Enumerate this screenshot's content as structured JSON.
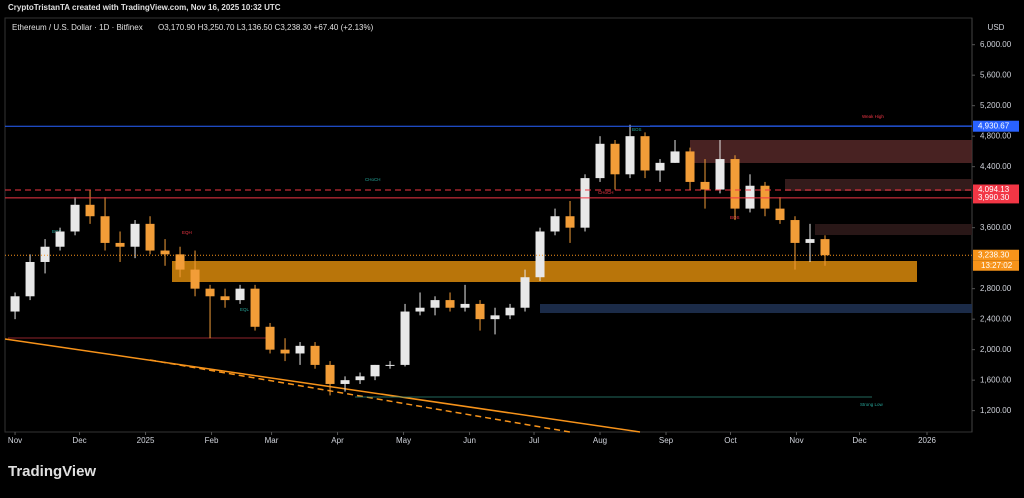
{
  "header": {
    "credit": "CryptoTristanTA created with TradingView.com, Nov 16, 2025 10:32 UTC",
    "brand": "TradingView"
  },
  "chart_data": {
    "type": "candlestick",
    "title": "Ethereum / U.S. Dollar · 1D · Bitfinex",
    "ohlc_text": "O3,170.90 H3,250.70 L3,136.50 C3,238.30 +67.40 (+2.13%)",
    "currency": "USD",
    "up_color": "#e8e8e8",
    "down_color": "#f29d38",
    "candles": {
      "open": [
        2500,
        2700,
        3150,
        3350,
        3550,
        3900,
        3750,
        3400,
        3350,
        3650,
        3300,
        3250,
        3050,
        2800,
        2700,
        2650,
        2800,
        2300,
        2000,
        1950,
        2050,
        1800,
        1550,
        1600,
        1650,
        1800,
        1800,
        2500,
        2550,
        2650,
        2550,
        2600,
        2400,
        2450,
        2550,
        2950,
        3550,
        3750,
        3600,
        4250,
        4700,
        4300,
        4800,
        4350,
        4450,
        4600,
        4200,
        4100,
        4500,
        3850,
        4150,
        3850,
        3700,
        3400,
        3450
      ],
      "high": [
        2750,
        3250,
        3450,
        3600,
        4000,
        4100,
        4000,
        3550,
        3700,
        3750,
        3450,
        3350,
        3300,
        2850,
        2800,
        2850,
        2850,
        2350,
        2150,
        2100,
        2100,
        1850,
        1650,
        1700,
        1800,
        1850,
        2600,
        2750,
        2700,
        2750,
        2850,
        2650,
        2550,
        2600,
        3050,
        3600,
        3850,
        3950,
        4300,
        4800,
        4750,
        4950,
        4850,
        4500,
        4750,
        4650,
        4500,
        4750,
        4550,
        4300,
        4200,
        4000,
        3750,
        3650,
        3500
      ],
      "low": [
        2400,
        2650,
        3000,
        3300,
        3500,
        3650,
        3300,
        3150,
        3200,
        3250,
        3100,
        2950,
        2700,
        2150,
        2550,
        2600,
        2250,
        1950,
        1850,
        1800,
        1750,
        1400,
        1450,
        1550,
        1600,
        1750,
        1780,
        2450,
        2450,
        2500,
        2500,
        2250,
        2200,
        2400,
        2500,
        2900,
        3500,
        3400,
        3550,
        4200,
        4100,
        4250,
        4250,
        4200,
        4450,
        4100,
        3850,
        4050,
        3700,
        3800,
        3750,
        3650,
        3050,
        3150,
        3100
      ],
      "close": [
        2700,
        3150,
        3350,
        3550,
        3900,
        3750,
        3400,
        3350,
        3650,
        3300,
        3250,
        3050,
        2800,
        2700,
        2650,
        2800,
        2300,
        2000,
        1950,
        2050,
        1800,
        1550,
        1600,
        1650,
        1800,
        1800,
        2500,
        2550,
        2650,
        2550,
        2600,
        2400,
        2450,
        2550,
        2950,
        3550,
        3750,
        3600,
        4250,
        4700,
        4300,
        4800,
        4350,
        4450,
        4600,
        4200,
        4100,
        4500,
        3850,
        4150,
        3850,
        3700,
        3400,
        3450,
        3238.3
      ]
    },
    "xlim": [
      -0.67,
      63.8
    ],
    "xticks": [
      {
        "value": 0,
        "label": "Nov"
      },
      {
        "value": 4.3,
        "label": "Dec"
      },
      {
        "value": 8.7,
        "label": "2025"
      },
      {
        "value": 13.1,
        "label": "Feb"
      },
      {
        "value": 17.1,
        "label": "Mar"
      },
      {
        "value": 21.5,
        "label": "Apr"
      },
      {
        "value": 25.9,
        "label": "May"
      },
      {
        "value": 30.3,
        "label": "Jun"
      },
      {
        "value": 34.6,
        "label": "Jul"
      },
      {
        "value": 39,
        "label": "Aug"
      },
      {
        "value": 43.4,
        "label": "Sep"
      },
      {
        "value": 47.7,
        "label": "Oct"
      },
      {
        "value": 52.1,
        "label": "Nov"
      },
      {
        "value": 56.3,
        "label": "Dec"
      },
      {
        "value": 60.8,
        "label": "2026"
      }
    ],
    "ylim": [
      920,
      6350
    ],
    "yticks": [
      {
        "value": 1200,
        "label": "1,200.00"
      },
      {
        "value": 1600,
        "label": "1,600.00"
      },
      {
        "value": 2000,
        "label": "2,000.00"
      },
      {
        "value": 2400,
        "label": "2,400.00"
      },
      {
        "value": 2800,
        "label": "2,800.00"
      },
      {
        "value": 3600,
        "label": "3,600.00"
      },
      {
        "value": 4400,
        "label": "4,400.00"
      },
      {
        "value": 4800,
        "label": "4,800.00"
      },
      {
        "value": 5200,
        "label": "5,200.00"
      },
      {
        "value": 5600,
        "label": "5,600.00"
      },
      {
        "value": 6000,
        "label": "6,000.00"
      }
    ],
    "levels": [
      {
        "value": 4930.67,
        "label": "4,930.67",
        "color": "#2962ff",
        "dash": "solid"
      },
      {
        "value": 4094.13,
        "label": "4,094.13",
        "color": "#f23645",
        "dash": "dashed"
      },
      {
        "value": 3990.3,
        "label": "3,990.30",
        "color": "#f23645",
        "dash": "solid"
      }
    ],
    "last_price": {
      "value": 3238.3,
      "label": "3,238.30",
      "countdown": "13:27:02",
      "color": "#f7931a"
    },
    "annotations": [
      "CHoCH",
      "Weak High",
      "Strong Low",
      "BOS",
      "CHoCH",
      "BOS",
      "EQH",
      "BOS",
      "EQL"
    ]
  }
}
